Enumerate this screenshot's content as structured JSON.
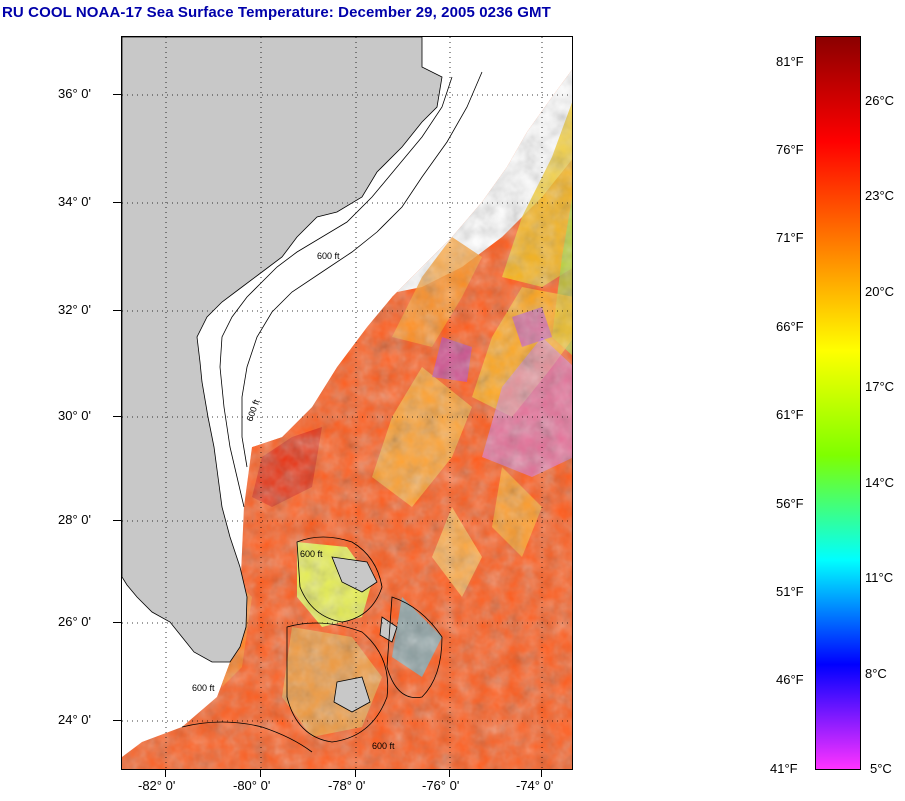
{
  "title": "RU COOL  NOAA-17  Sea Surface Temperature:  December 29, 2005 0236 GMT",
  "map": {
    "latitude_labels": [
      "36° 0'",
      "34° 0'",
      "32° 0'",
      "30° 0'",
      "28° 0'",
      "26° 0'",
      "24° 0'"
    ],
    "longitude_labels": [
      "-82° 0'",
      "-80° 0'",
      "-78° 0'",
      "-76° 0'",
      "-74° 0'"
    ],
    "land_color": "#c8c8c8",
    "depth_contour_labels": [
      "600 ft",
      "600 ft",
      "600 ft",
      "600 ft",
      "600 ft"
    ]
  },
  "colorbar": {
    "fahrenheit_labels": [
      "81°F",
      "76°F",
      "71°F",
      "66°F",
      "61°F",
      "56°F",
      "51°F",
      "46°F",
      "41°F"
    ],
    "celsius_labels": [
      "26°C",
      "23°C",
      "20°C",
      "17°C",
      "14°C",
      "11°C",
      "8°C",
      "5°C"
    ],
    "colors_top_to_bottom": [
      "#8b0000",
      "#ff0000",
      "#ff7f00",
      "#ffff00",
      "#7fff00",
      "#00ffff",
      "#0000ff",
      "#ff33ff"
    ]
  }
}
